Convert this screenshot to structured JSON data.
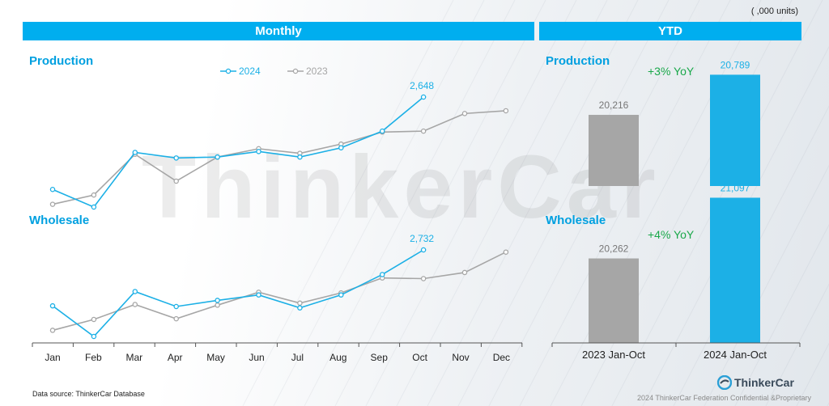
{
  "units": "( ,000 units)",
  "headers": {
    "monthly": "Monthly",
    "ytd": "YTD"
  },
  "watermark": "ThinkerCar",
  "footer": {
    "source": "Data source: ThinkerCar Database",
    "confidential": "2024 ThinkerCar Federation Confidential &Proprietary",
    "logo": "ThinkerCar"
  },
  "colors": {
    "series_2024": "#1cb0e6",
    "series_2023": "#a6a6a6",
    "header": "#00aeef",
    "yoy": "#1aa84a"
  },
  "chart_data": [
    {
      "type": "line",
      "title": "Production",
      "categories": [
        "Jan",
        "Feb",
        "Mar",
        "Apr",
        "May",
        "Jun",
        "Jul",
        "Aug",
        "Sep",
        "Oct",
        "Nov",
        "Dec"
      ],
      "series": [
        {
          "name": "2024",
          "values": [
            1.65,
            1.46,
            2.05,
            1.99,
            2.0,
            2.06,
            2.0,
            2.1,
            2.28,
            2.648,
            null,
            null
          ]
        },
        {
          "name": "2023",
          "values": [
            1.49,
            1.59,
            2.03,
            1.74,
            2.0,
            2.09,
            2.04,
            2.14,
            2.27,
            2.28,
            2.47,
            2.5
          ]
        }
      ],
      "labels": [
        {
          "series": "2024",
          "index": 9,
          "text": "2,648"
        }
      ],
      "legend": "top-center"
    },
    {
      "type": "line",
      "title": "Wholesale",
      "categories": [
        "Jan",
        "Feb",
        "Mar",
        "Apr",
        "May",
        "Jun",
        "Jul",
        "Aug",
        "Sep",
        "Oct",
        "Nov",
        "Dec"
      ],
      "series": [
        {
          "name": "2024",
          "values": [
            1.91,
            1.46,
            2.12,
            1.9,
            1.99,
            2.07,
            1.88,
            2.07,
            2.37,
            2.732,
            null,
            null
          ]
        },
        {
          "name": "2023",
          "values": [
            1.55,
            1.71,
            1.93,
            1.72,
            1.92,
            2.11,
            1.95,
            2.1,
            2.32,
            2.31,
            2.4,
            2.7
          ]
        }
      ],
      "labels": [
        {
          "series": "2024",
          "index": 9,
          "text": "2,732"
        }
      ],
      "x_ticks": [
        "Jan",
        "Feb",
        "Mar",
        "Apr",
        "May",
        "Jun",
        "Jul",
        "Aug",
        "Sep",
        "Oct",
        "Nov",
        "Dec"
      ]
    },
    {
      "type": "bar",
      "title": "Production",
      "categories": [
        "2023 Jan-Oct",
        "2024 Jan-Oct"
      ],
      "values": [
        20216,
        20789
      ],
      "value_labels": [
        "20,216",
        "20,789"
      ],
      "annotation": "+3% YoY"
    },
    {
      "type": "bar",
      "title": "Wholesale",
      "categories": [
        "2023 Jan-Oct",
        "2024 Jan-Oct"
      ],
      "values": [
        20262,
        21097
      ],
      "value_labels": [
        "20,262",
        "21,097"
      ],
      "annotation": "+4% YoY",
      "x_ticks": [
        "2023 Jan-Oct",
        "2024 Jan-Oct"
      ]
    }
  ]
}
